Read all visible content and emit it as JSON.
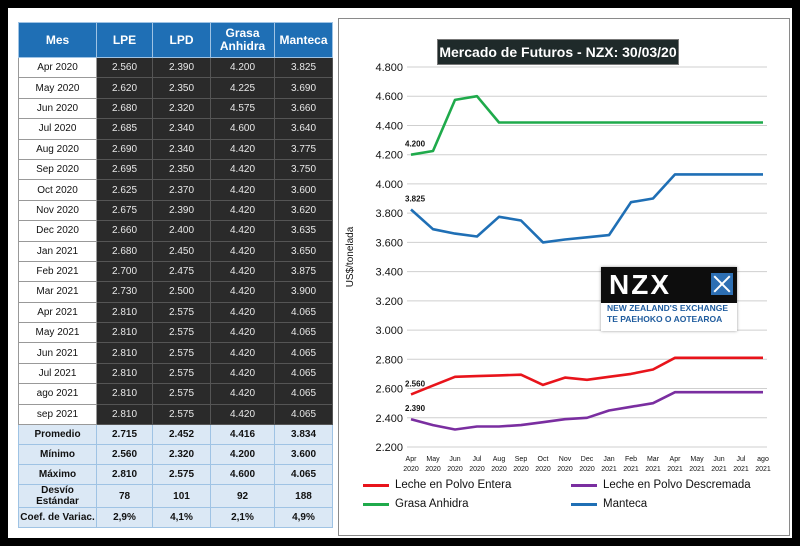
{
  "table": {
    "headers": [
      "Mes",
      "LPE",
      "LPD",
      "Grasa Anhidra",
      "Manteca"
    ],
    "rows": [
      {
        "mes": "Apr 2020",
        "lpe": "2.560",
        "lpd": "2.390",
        "ga": "4.200",
        "man": "3.825"
      },
      {
        "mes": "May 2020",
        "lpe": "2.620",
        "lpd": "2.350",
        "ga": "4.225",
        "man": "3.690"
      },
      {
        "mes": "Jun 2020",
        "lpe": "2.680",
        "lpd": "2.320",
        "ga": "4.575",
        "man": "3.660"
      },
      {
        "mes": "Jul 2020",
        "lpe": "2.685",
        "lpd": "2.340",
        "ga": "4.600",
        "man": "3.640"
      },
      {
        "mes": "Aug 2020",
        "lpe": "2.690",
        "lpd": "2.340",
        "ga": "4.420",
        "man": "3.775"
      },
      {
        "mes": "Sep 2020",
        "lpe": "2.695",
        "lpd": "2.350",
        "ga": "4.420",
        "man": "3.750"
      },
      {
        "mes": "Oct 2020",
        "lpe": "2.625",
        "lpd": "2.370",
        "ga": "4.420",
        "man": "3.600"
      },
      {
        "mes": "Nov 2020",
        "lpe": "2.675",
        "lpd": "2.390",
        "ga": "4.420",
        "man": "3.620"
      },
      {
        "mes": "Dec 2020",
        "lpe": "2.660",
        "lpd": "2.400",
        "ga": "4.420",
        "man": "3.635"
      },
      {
        "mes": "Jan 2021",
        "lpe": "2.680",
        "lpd": "2.450",
        "ga": "4.420",
        "man": "3.650"
      },
      {
        "mes": "Feb 2021",
        "lpe": "2.700",
        "lpd": "2.475",
        "ga": "4.420",
        "man": "3.875"
      },
      {
        "mes": "Mar 2021",
        "lpe": "2.730",
        "lpd": "2.500",
        "ga": "4.420",
        "man": "3.900"
      },
      {
        "mes": "Apr 2021",
        "lpe": "2.810",
        "lpd": "2.575",
        "ga": "4.420",
        "man": "4.065"
      },
      {
        "mes": "May 2021",
        "lpe": "2.810",
        "lpd": "2.575",
        "ga": "4.420",
        "man": "4.065"
      },
      {
        "mes": "Jun 2021",
        "lpe": "2.810",
        "lpd": "2.575",
        "ga": "4.420",
        "man": "4.065"
      },
      {
        "mes": "Jul 2021",
        "lpe": "2.810",
        "lpd": "2.575",
        "ga": "4.420",
        "man": "4.065"
      },
      {
        "mes": "ago 2021",
        "lpe": "2.810",
        "lpd": "2.575",
        "ga": "4.420",
        "man": "4.065"
      },
      {
        "mes": "sep 2021",
        "lpe": "2.810",
        "lpd": "2.575",
        "ga": "4.420",
        "man": "4.065"
      }
    ],
    "stats": [
      {
        "label": "Promedio",
        "lpe": "2.715",
        "lpd": "2.452",
        "ga": "4.416",
        "man": "3.834"
      },
      {
        "label": "Mínimo",
        "lpe": "2.560",
        "lpd": "2.320",
        "ga": "4.200",
        "man": "3.600"
      },
      {
        "label": "Máximo",
        "lpe": "2.810",
        "lpd": "2.575",
        "ga": "4.600",
        "man": "4.065"
      },
      {
        "label": "Desvío Estándar",
        "lpe": "78",
        "lpd": "101",
        "ga": "92",
        "man": "188"
      },
      {
        "label": "Coef. de Variac.",
        "lpe": "2,9%",
        "lpd": "4,1%",
        "ga": "2,1%",
        "man": "4,9%"
      }
    ]
  },
  "logo": {
    "name": "NZX",
    "line1": "NEW ZEALAND'S EXCHANGE",
    "line2": "TE PAEHOKO O AOTEAROA"
  },
  "chart_data": {
    "type": "line",
    "title": "Mercado de Futuros - NZX: 30/03/20",
    "ylabel": "US$/tonelada",
    "xlabel": "",
    "ylim": [
      2200,
      4800
    ],
    "yticks": [
      "4.800",
      "4.600",
      "4.400",
      "4.200",
      "4.000",
      "3.800",
      "3.600",
      "3.400",
      "3.200",
      "3.000",
      "2.800",
      "2.600",
      "2.400",
      "2.200"
    ],
    "categories": [
      {
        "m": "Apr",
        "y": "2020"
      },
      {
        "m": "May",
        "y": "2020"
      },
      {
        "m": "Jun",
        "y": "2020"
      },
      {
        "m": "Jul",
        "y": "2020"
      },
      {
        "m": "Aug",
        "y": "2020"
      },
      {
        "m": "Sep",
        "y": "2020"
      },
      {
        "m": "Oct",
        "y": "2020"
      },
      {
        "m": "Nov",
        "y": "2020"
      },
      {
        "m": "Dec",
        "y": "2020"
      },
      {
        "m": "Jan",
        "y": "2021"
      },
      {
        "m": "Feb",
        "y": "2021"
      },
      {
        "m": "Mar",
        "y": "2021"
      },
      {
        "m": "Apr",
        "y": "2021"
      },
      {
        "m": "May",
        "y": "2021"
      },
      {
        "m": "Jun",
        "y": "2021"
      },
      {
        "m": "Jul",
        "y": "2021"
      },
      {
        "m": "ago",
        "y": "2021"
      }
    ],
    "series": [
      {
        "name": "Leche en Polvo Entera",
        "color": "#e8141b",
        "values": [
          2560,
          2620,
          2680,
          2685,
          2690,
          2695,
          2625,
          2675,
          2660,
          2680,
          2700,
          2730,
          2810,
          2810,
          2810,
          2810,
          2810
        ],
        "start_label": "2.560"
      },
      {
        "name": "Leche en Polvo Descremada",
        "color": "#7a2ea0",
        "values": [
          2390,
          2350,
          2320,
          2340,
          2340,
          2350,
          2370,
          2390,
          2400,
          2450,
          2475,
          2500,
          2575,
          2575,
          2575,
          2575,
          2575
        ],
        "start_label": "2.390"
      },
      {
        "name": "Grasa Anhidra",
        "color": "#1faa4b",
        "values": [
          4200,
          4225,
          4575,
          4600,
          4420,
          4420,
          4420,
          4420,
          4420,
          4420,
          4420,
          4420,
          4420,
          4420,
          4420,
          4420,
          4420
        ],
        "start_label": "4.200"
      },
      {
        "name": "Manteca",
        "color": "#1f6fb5",
        "values": [
          3825,
          3690,
          3660,
          3640,
          3775,
          3750,
          3600,
          3620,
          3635,
          3650,
          3875,
          3900,
          4065,
          4065,
          4065,
          4065,
          4065
        ],
        "start_label": "3.825"
      }
    ],
    "grid": "horizontal",
    "legend": "bottom"
  }
}
